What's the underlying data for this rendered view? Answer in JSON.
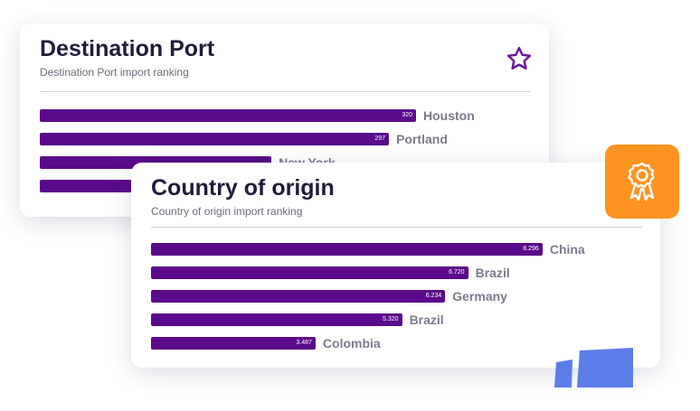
{
  "colors": {
    "bar": "#5a0a8a",
    "star": "#6a1a9a",
    "badge": "#ff9320",
    "badge_icon": "#ffffff",
    "deco": "#5b7de8"
  },
  "icons": {
    "favorite": "star-icon",
    "award": "award-ribbon-icon"
  },
  "chart_data": [
    {
      "type": "bar",
      "orientation": "horizontal",
      "title": "Destination Port",
      "subtitle": "Destination Port import ranking",
      "categories": [
        "Houston",
        "Portland",
        "New York",
        ""
      ],
      "values": [
        320,
        297,
        197,
        160
      ],
      "value_labels": [
        "320",
        "297",
        "",
        ""
      ],
      "xlim": [
        0,
        500
      ]
    },
    {
      "type": "bar",
      "orientation": "horizontal",
      "title": "Country of origin",
      "subtitle": "Country of origin import ranking",
      "categories": [
        "China",
        "Brazil",
        "Germany",
        "Brazil",
        "Colombia"
      ],
      "values": [
        8.296,
        6.72,
        6.234,
        5.32,
        3.487
      ],
      "value_labels": [
        "8.296",
        "6.720",
        "6.234",
        "5.320",
        "3.487"
      ],
      "xlim": [
        0,
        11.5
      ]
    }
  ]
}
